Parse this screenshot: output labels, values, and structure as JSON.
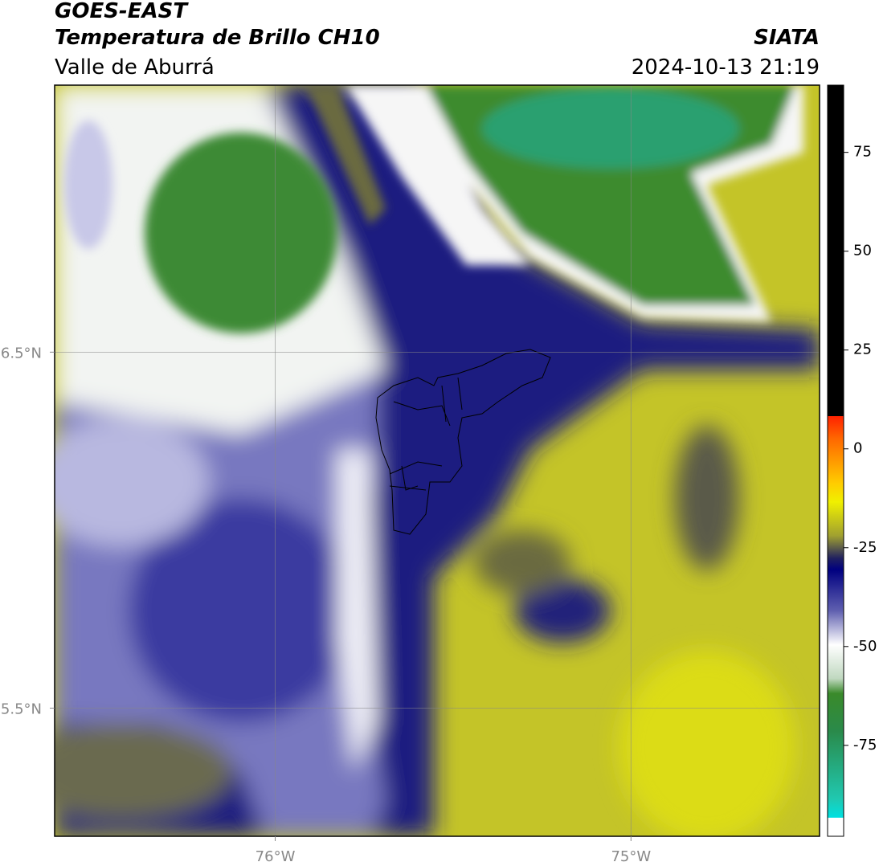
{
  "header": {
    "title": "GOES-EAST",
    "subtitle": "Temperatura de Brillo CH10",
    "region": "Valle de Aburrá",
    "source": "SIATA",
    "datetime": "2024-10-13 21:19"
  },
  "map": {
    "lon_lim": [
      -76.62,
      -74.47
    ],
    "lat_lim": [
      5.14,
      7.25
    ],
    "lon_ticks": [
      {
        "value": -76,
        "label": "76°W"
      },
      {
        "value": -75,
        "label": "75°W"
      }
    ],
    "lat_ticks": [
      {
        "value": 6.5,
        "label": "6.5°N"
      },
      {
        "value": 5.5,
        "label": "5.5°N"
      }
    ],
    "grid": true
  },
  "colorbar": {
    "lim": [
      -98,
      92
    ],
    "ticks": [
      75,
      50,
      25,
      0,
      -25,
      -50,
      -75
    ]
  }
}
